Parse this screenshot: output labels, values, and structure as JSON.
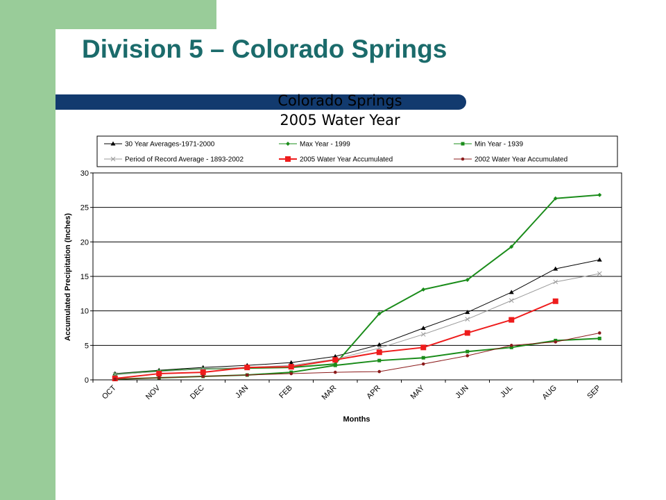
{
  "slide": {
    "title": "Division 5 – Colorado Springs"
  },
  "chart_data": {
    "type": "line",
    "title": "Colorado Springs",
    "subtitle": "2005 Water Year",
    "xlabel": "Months",
    "ylabel": "Accumulated Precipitation (Inches)",
    "ylim": [
      0,
      30
    ],
    "yticks": [
      0,
      5,
      10,
      15,
      20,
      25,
      30
    ],
    "grid": true,
    "legend_position": "top",
    "categories": [
      "OCT",
      "NOV",
      "DEC",
      "JAN",
      "FEB",
      "MAR",
      "APR",
      "MAY",
      "JUN",
      "JUL",
      "AUG",
      "SEP"
    ],
    "series": [
      {
        "name": "30 Year Averages-1971-2000",
        "color": "#000000",
        "marker": "triangle",
        "values": [
          0.9,
          1.4,
          1.8,
          2.1,
          2.5,
          3.4,
          5.1,
          7.5,
          9.8,
          12.7,
          16.1,
          17.4
        ]
      },
      {
        "name": "Max Year - 1999",
        "color": "#1a8c1a",
        "marker": "diamond",
        "values": [
          0.8,
          1.3,
          1.6,
          1.7,
          1.8,
          2.3,
          9.6,
          13.1,
          14.5,
          19.3,
          26.3,
          26.8
        ]
      },
      {
        "name": "Min Year - 1939",
        "color": "#1a8c1a",
        "marker": "square",
        "values": [
          0.1,
          0.3,
          0.5,
          0.7,
          1.1,
          2.1,
          2.8,
          3.2,
          4.1,
          4.7,
          5.7,
          6.0
        ]
      },
      {
        "name": "Period of Record Average - 1893-2002",
        "color": "#999999",
        "marker": "x",
        "values": [
          0.8,
          1.2,
          1.6,
          1.8,
          2.1,
          3.0,
          4.6,
          6.6,
          8.8,
          11.5,
          14.2,
          15.4
        ]
      },
      {
        "name": "2005 Water Year Accumulated",
        "color": "#ee1c1c",
        "marker": "bigsquare",
        "values": [
          0.2,
          0.9,
          1.1,
          1.8,
          1.9,
          2.9,
          4.0,
          4.7,
          6.8,
          8.7,
          11.4,
          null
        ]
      },
      {
        "name": "2002 Water Year Accumulated",
        "color": "#8b1a1a",
        "marker": "dot",
        "values": [
          0.1,
          0.3,
          0.5,
          0.7,
          0.9,
          1.1,
          1.2,
          2.3,
          3.5,
          5.0,
          5.5,
          6.8
        ]
      }
    ]
  }
}
